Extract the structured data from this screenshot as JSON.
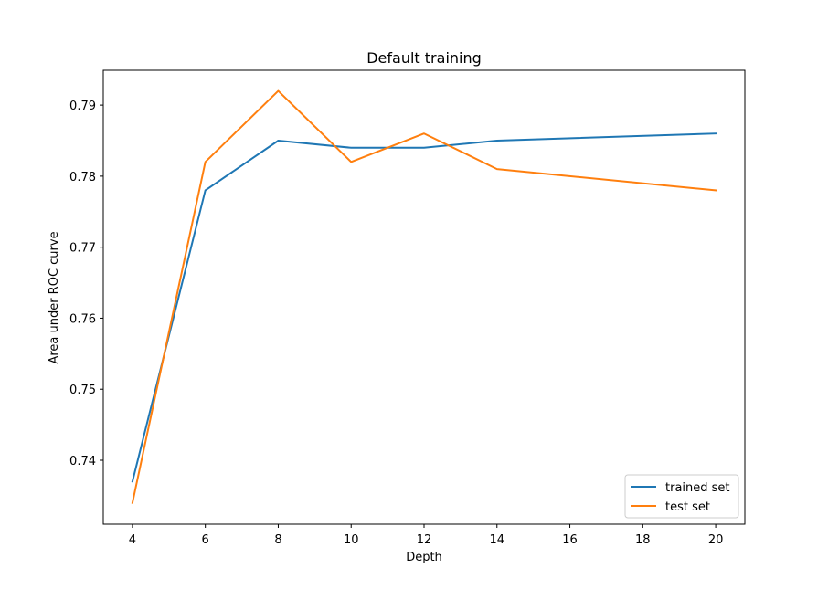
{
  "chart_data": {
    "type": "line",
    "title": "Default training",
    "xlabel": "Depth",
    "ylabel": "Area under ROC curve",
    "xlim": [
      3.2,
      20.8
    ],
    "ylim": [
      0.731,
      0.7949
    ],
    "xticks": [
      4,
      6,
      8,
      10,
      12,
      14,
      16,
      18,
      20
    ],
    "yticks": [
      0.74,
      0.75,
      0.76,
      0.77,
      0.78,
      0.79
    ],
    "ytick_labels": [
      "0.74",
      "0.75",
      "0.76",
      "0.77",
      "0.78",
      "0.79"
    ],
    "x": [
      4,
      6,
      8,
      10,
      12,
      14,
      20
    ],
    "series": [
      {
        "name": "trained set",
        "color": "#1f77b4",
        "values": [
          0.737,
          0.778,
          0.785,
          0.784,
          0.784,
          0.785,
          0.786
        ]
      },
      {
        "name": "test set",
        "color": "#ff7f0e",
        "values": [
          0.734,
          0.782,
          0.792,
          0.782,
          0.786,
          0.781,
          0.778
        ]
      }
    ],
    "grid": false,
    "legend_position": "lower right"
  }
}
